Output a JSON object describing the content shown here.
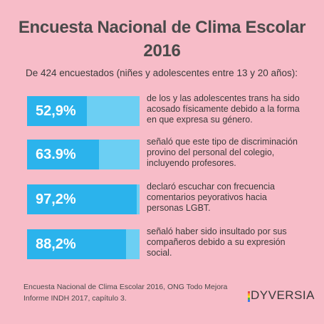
{
  "title_line1": "Encuesta Nacional de Clima Escolar",
  "title_line2": "2016",
  "subtitle": "De 424 encuestados (niñes y adolescentes entre 13 y 20 años):",
  "chart_data": {
    "type": "bar",
    "categories": [
      "52,9%",
      "63.9%",
      "97,2%",
      "88,2%"
    ],
    "values": [
      52.9,
      63.9,
      97.2,
      88.2
    ],
    "ylim": [
      0,
      100
    ],
    "descriptions": [
      "de los y las adolescentes trans ha sido acosado físicamente debido a la forma en que expresa su género.",
      "señaló que este tipo de discriminación provino del personal del colegio, incluyendo profesores.",
      "declaró escuchar con frecuencia comentarios peyorativos hacia personas LGBT.",
      "señaló haber sido insultado por sus compañeros debido a su expresión social."
    ],
    "colors": {
      "fill": "#2bb3ec",
      "track": "#6ccff3",
      "background": "#f7bcc8"
    }
  },
  "source_line1": "Encuesta Nacional de Clima Escolar 2016, ONG Todo Mejora",
  "source_line2": "Informe INDH 2017, capítulo 3.",
  "logo_text": "DYVERSIA"
}
